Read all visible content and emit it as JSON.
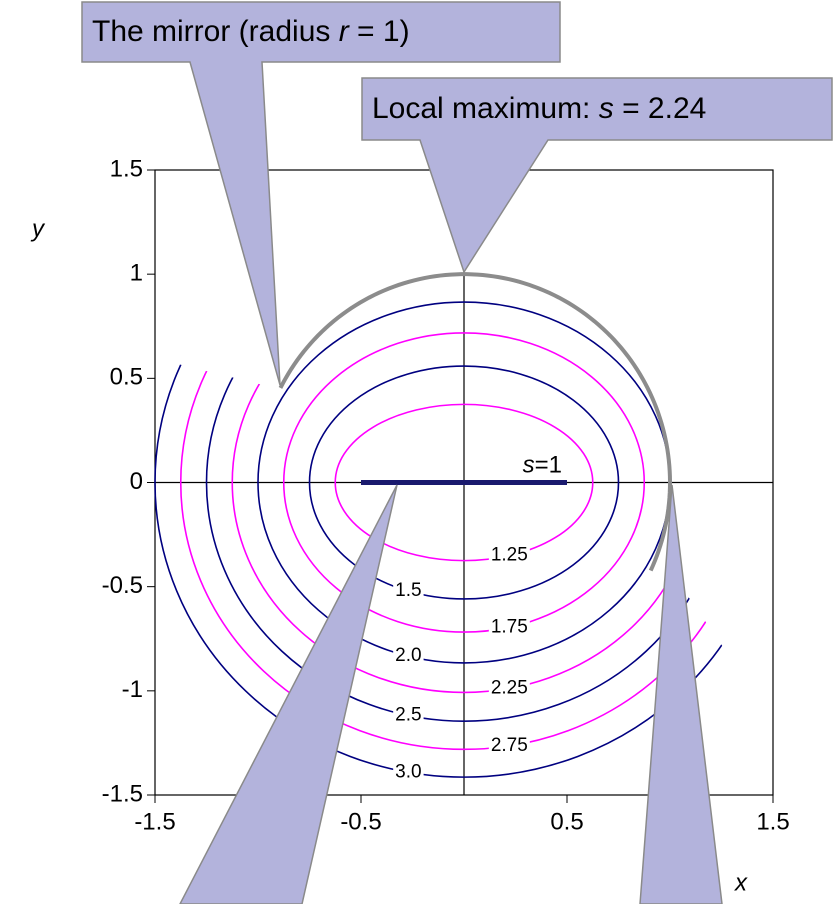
{
  "chart_data": {
    "type": "contour",
    "xlabel": "x",
    "ylabel": "y",
    "xlim": [
      -1.5,
      1.5
    ],
    "ylim": [
      -1.5,
      1.5
    ],
    "xticks": [
      -1.5,
      -0.5,
      0.5,
      1.5
    ],
    "yticks": [
      -1.5,
      -1,
      -0.5,
      0,
      0.5,
      1,
      1.5
    ],
    "levels": [
      1.25,
      1.5,
      1.75,
      {
        "value": 2,
        "label": "2.0"
      },
      2.25,
      2.5,
      2.75,
      {
        "value": 3,
        "label": "3.0"
      }
    ],
    "level_colors": [
      "#ff00ff",
      "#000080"
    ],
    "segment": {
      "x": [
        -0.5,
        0.5
      ],
      "label": [
        "s",
        "=1"
      ],
      "color": "#1a1a6e"
    },
    "mirror": {
      "radius": 1,
      "color": "#8c8c8c",
      "callout": [
        "The mirror (radius ",
        "r",
        " = 1)"
      ]
    },
    "maximum": {
      "value": 2.24,
      "callout": [
        "Local maximum: ",
        "s",
        " = 2.24"
      ]
    }
  }
}
